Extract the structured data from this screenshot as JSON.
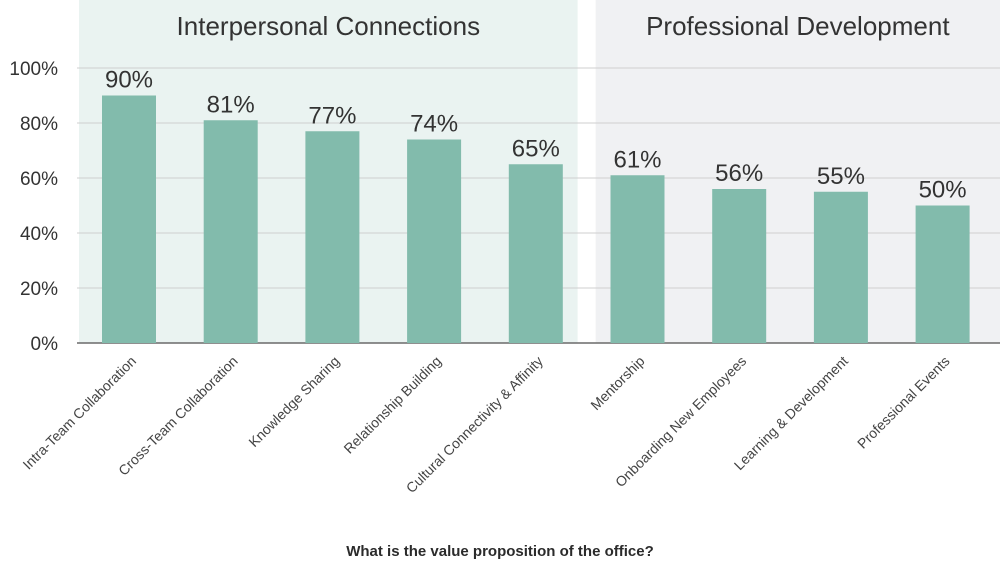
{
  "chart_data": {
    "type": "bar",
    "xlabel": "What is the value proposition of the office?",
    "ylabel": "",
    "ylim": [
      0,
      100
    ],
    "y_ticks": [
      "0%",
      "20%",
      "40%",
      "60%",
      "80%",
      "100%"
    ],
    "categories": [
      "Intra-Team Collaboration",
      "Cross-Team Collaboration",
      "Knowledge Sharing",
      "Relationship Building",
      "Cultural Connectivity & Affinity",
      "Mentorship",
      "Onboarding New Employees",
      "Learning & Development",
      "Professional Events"
    ],
    "values": [
      90,
      81,
      77,
      74,
      65,
      61,
      56,
      55,
      50
    ],
    "data_labels": [
      "90%",
      "81%",
      "77%",
      "74%",
      "65%",
      "61%",
      "56%",
      "55%",
      "50%"
    ],
    "groups": [
      {
        "title": "Interpersonal Connections",
        "category_count": 5,
        "background": "#eaf3f1"
      },
      {
        "title": "Professional Development",
        "category_count": 4,
        "background": "#f0f1f3"
      }
    ],
    "bar_color": "#82bbac",
    "grid": true,
    "legend": "none"
  }
}
